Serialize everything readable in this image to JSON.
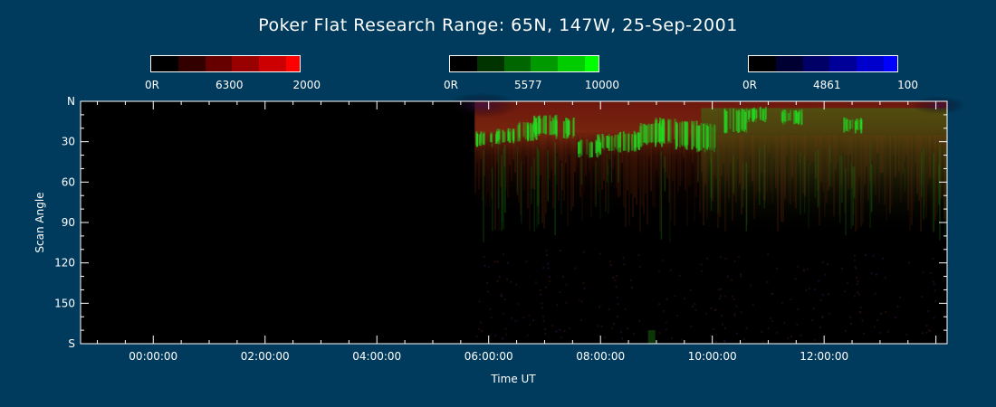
{
  "chart_data": {
    "type": "heatmap",
    "title": "Poker Flat Research Range: 65N, 147W, 25-Sep-2001",
    "xlabel": "Time UT",
    "ylabel": "Scan Angle",
    "x_ticks": [
      {
        "label": "00:00:00",
        "hours": 0
      },
      {
        "label": "02:00:00",
        "hours": 2
      },
      {
        "label": "04:00:00",
        "hours": 4
      },
      {
        "label": "06:00:00",
        "hours": 6
      },
      {
        "label": "08:00:00",
        "hours": 8
      },
      {
        "label": "10:00:00",
        "hours": 10
      },
      {
        "label": "12:00:00",
        "hours": 12
      }
    ],
    "xlim_hours": [
      -1.3,
      14.2
    ],
    "y_ticks": [
      {
        "label": "N",
        "deg": 0
      },
      {
        "label": "30",
        "deg": 30
      },
      {
        "label": "60",
        "deg": 60
      },
      {
        "label": "90",
        "deg": 90
      },
      {
        "label": "120",
        "deg": 120
      },
      {
        "label": "150",
        "deg": 150
      },
      {
        "label": "S",
        "deg": 180
      }
    ],
    "ylim_deg": [
      0,
      180
    ],
    "data_start_hours": 5.75,
    "data_end_hours": 14.2,
    "colorbars": [
      {
        "channel": "6300",
        "min_label": "0R",
        "max_label": "2000",
        "color": "#ff0000"
      },
      {
        "channel": "5577",
        "min_label": "0R",
        "max_label": "10000",
        "color": "#00ff00"
      },
      {
        "channel": "4861",
        "min_label": "0R",
        "max_label": "100",
        "color": "#0000ff"
      }
    ]
  },
  "colors": {
    "background": "#003a5c",
    "plot_background": "#000000",
    "axis": "#ffffff"
  }
}
